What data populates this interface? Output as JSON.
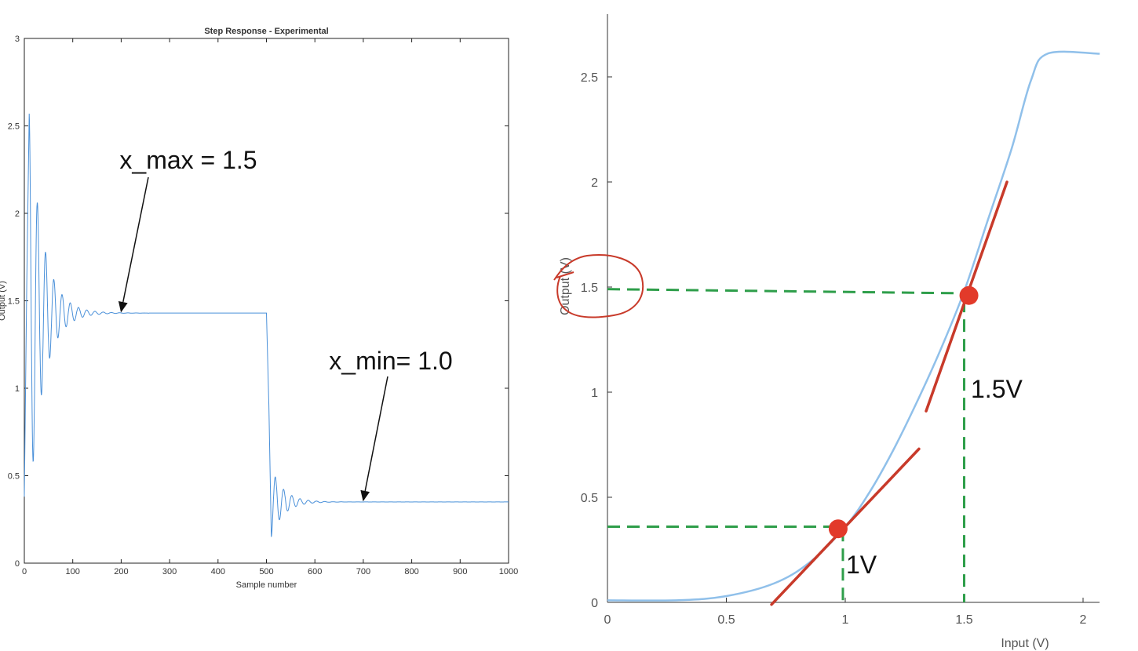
{
  "chart_data": [
    {
      "type": "line",
      "title": "Step Response - Experimental",
      "xlabel": "Sample number",
      "ylabel": "Output (V)",
      "xlim": [
        0,
        1000
      ],
      "ylim": [
        0,
        3
      ],
      "xticks": [
        "0",
        "100",
        "200",
        "300",
        "400",
        "500",
        "600",
        "700",
        "800",
        "900",
        "1000"
      ],
      "yticks": [
        "0",
        "0.5",
        "1",
        "1.5",
        "2",
        "2.5",
        "3"
      ],
      "grid": false,
      "series": [
        {
          "color": "#4a90d9",
          "segments": [
            {
              "x_start": 0,
              "x_end": 500,
              "initial": 0.38,
              "settle": 1.43,
              "first_peak": 2.57,
              "decay": 0.035,
              "period": 17
            },
            {
              "x_start": 500,
              "x_end": 1000,
              "initial": 1.43,
              "settle": 0.35,
              "first_trough": 0.15,
              "decay": 0.04,
              "period": 17
            }
          ]
        }
      ],
      "annotations": [
        {
          "text": "x_max = 1.5",
          "arrow_to": [
            200,
            1.44
          ]
        },
        {
          "text": "x_min= 1.0",
          "arrow_to": [
            700,
            0.36
          ]
        }
      ]
    },
    {
      "type": "line",
      "xlabel": "Input (V)",
      "ylabel": "Output (V)",
      "xlim": [
        0,
        2.07
      ],
      "ylim": [
        0,
        2.8
      ],
      "xticks": [
        "0",
        "0.5",
        "1",
        "1.5",
        "2"
      ],
      "yticks": [
        "0",
        "0.5",
        "1",
        "1.5",
        "2",
        "2.5"
      ],
      "series": [
        {
          "color": "#90c0ea",
          "x": [
            0,
            0.3,
            0.5,
            0.7,
            0.85,
            1.0,
            1.1,
            1.2,
            1.3,
            1.4,
            1.5,
            1.6,
            1.7,
            1.78,
            1.85,
            2.07
          ],
          "y": [
            0.01,
            0.01,
            0.03,
            0.09,
            0.19,
            0.36,
            0.52,
            0.72,
            0.95,
            1.2,
            1.48,
            1.82,
            2.16,
            2.48,
            2.61,
            2.61
          ]
        }
      ],
      "tangent_lines": [
        {
          "color": "#c83a2a",
          "from": [
            0.69,
            -0.01
          ],
          "to": [
            1.31,
            0.73
          ]
        },
        {
          "color": "#c83a2a",
          "from": [
            1.34,
            0.91
          ],
          "to": [
            1.68,
            2.0
          ]
        }
      ],
      "points": [
        {
          "x": 0.97,
          "y": 0.35,
          "color": "#e23a2a"
        },
        {
          "x": 1.52,
          "y": 1.46,
          "color": "#e23a2a"
        }
      ],
      "dashed_guides": [
        {
          "color": "#2e9e4a",
          "from": [
            0,
            0.36
          ],
          "to": [
            0.97,
            0.36
          ]
        },
        {
          "color": "#2e9e4a",
          "from": [
            0.99,
            0.35
          ],
          "to": [
            0.99,
            0
          ]
        },
        {
          "color": "#2e9e4a",
          "from": [
            0,
            1.49
          ],
          "to": [
            1.52,
            1.47
          ]
        },
        {
          "color": "#2e9e4a",
          "from": [
            1.5,
            1.44
          ],
          "to": [
            1.5,
            0
          ]
        }
      ],
      "annotations": [
        {
          "text": "1.5V",
          "near": [
            1.5,
            1.0
          ]
        },
        {
          "text": "1V",
          "near": [
            1.0,
            0.17
          ]
        }
      ],
      "hand_drawn_circle": {
        "color": "#c83a2a",
        "around": "y tick 1.5"
      }
    }
  ]
}
